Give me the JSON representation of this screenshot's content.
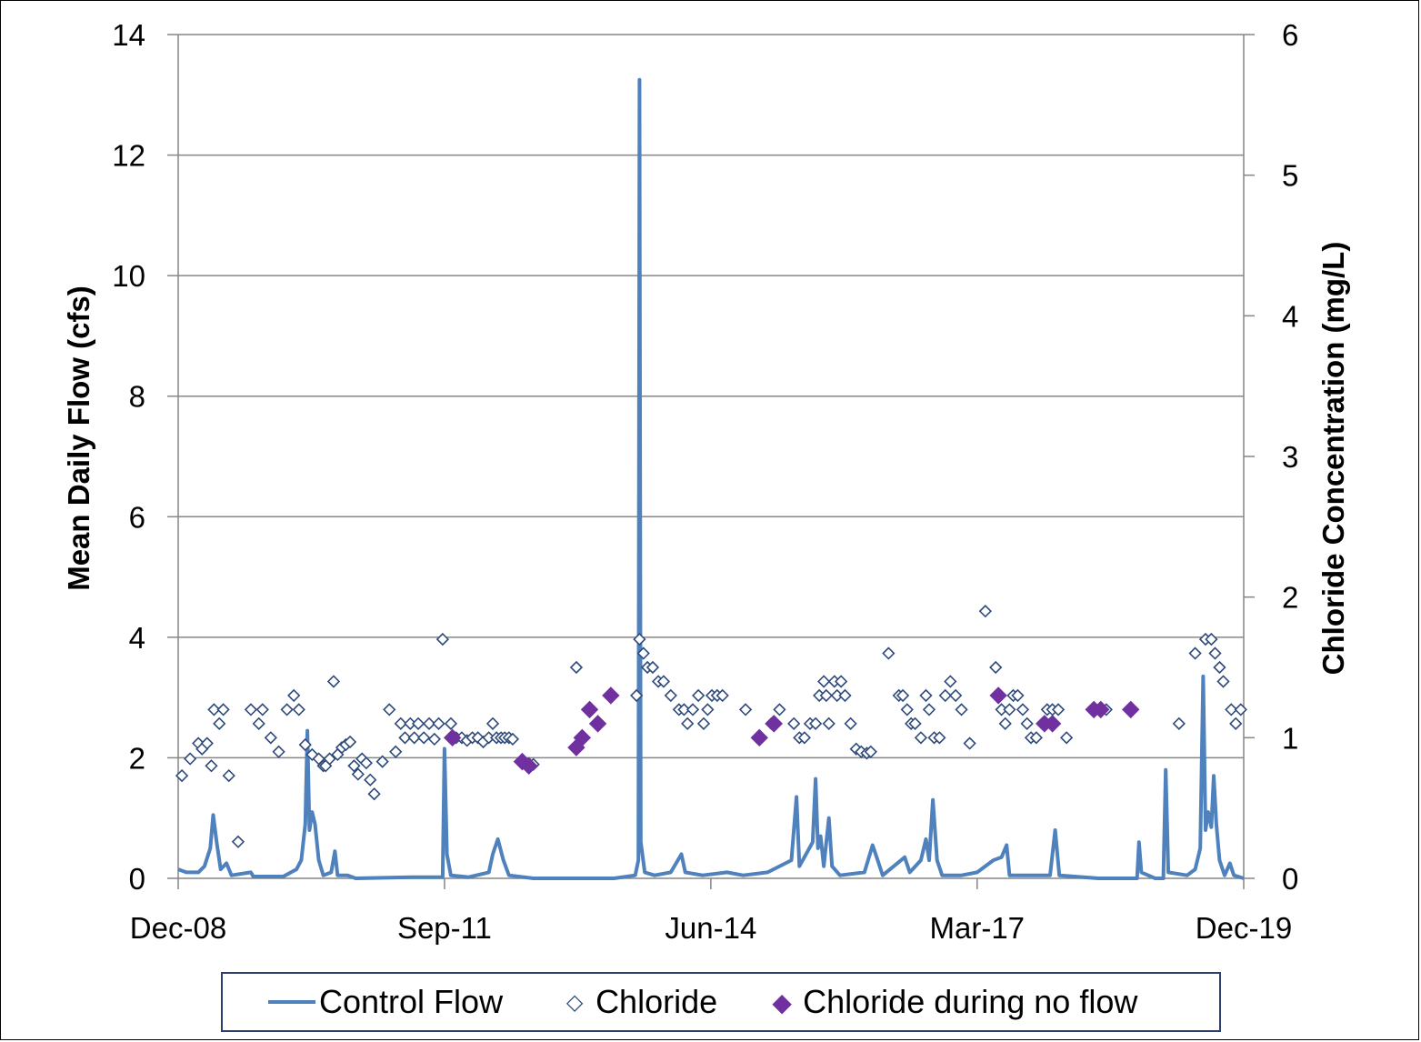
{
  "colors": {
    "flow": "#4f81bd",
    "chloride_edge": "#2e4a7a",
    "chloride_fill": "#ffffff",
    "noflow": "#7030a0",
    "grid": "#868686",
    "axis": "#868686"
  },
  "legend": {
    "flow_label": "Control Flow",
    "chloride_label": "Chloride",
    "noflow_label": "Chloride during no flow",
    "chloride_marker_icon": "◇",
    "noflow_marker_icon": "◆"
  },
  "chart_data": {
    "type": "line+scatter",
    "grid": "horizontal",
    "legend_position": "bottom",
    "x_axis": {
      "type": "date",
      "range": [
        "2008-12-01",
        "2019-12-01"
      ],
      "tick_labels": [
        "Dec-08",
        "Sep-11",
        "Jun-14",
        "Mar-17",
        "Dec-19"
      ],
      "tick_dates": [
        "2008-12-01",
        "2011-09-01",
        "2014-06-01",
        "2017-03-01",
        "2019-12-01"
      ]
    },
    "y_left": {
      "label": "Mean Daily  Flow (cfs)",
      "range": [
        0,
        14
      ],
      "ticks": [
        0,
        2,
        4,
        6,
        8,
        10,
        12,
        14
      ]
    },
    "y_right": {
      "label": "Chloride Concentration (mg/L)",
      "range": [
        0,
        6
      ],
      "ticks": [
        0,
        1,
        2,
        3,
        4,
        5,
        6
      ]
    },
    "series": [
      {
        "name": "Control Flow",
        "type": "line",
        "axis": "left",
        "points": [
          [
            "2008-12-01",
            0.15
          ],
          [
            "2009-01-01",
            0.1
          ],
          [
            "2009-02-15",
            0.1
          ],
          [
            "2009-03-10",
            0.2
          ],
          [
            "2009-04-01",
            0.5
          ],
          [
            "2009-04-12",
            1.05
          ],
          [
            "2009-04-25",
            0.6
          ],
          [
            "2009-05-10",
            0.15
          ],
          [
            "2009-06-01",
            0.25
          ],
          [
            "2009-06-20",
            0.05
          ],
          [
            "2009-09-01",
            0.1
          ],
          [
            "2009-09-10",
            0.03
          ],
          [
            "2010-01-01",
            0.03
          ],
          [
            "2010-02-20",
            0.15
          ],
          [
            "2010-03-10",
            0.3
          ],
          [
            "2010-03-25",
            0.9
          ],
          [
            "2010-04-02",
            2.45
          ],
          [
            "2010-04-10",
            0.8
          ],
          [
            "2010-04-20",
            1.1
          ],
          [
            "2010-05-01",
            0.9
          ],
          [
            "2010-05-15",
            0.3
          ],
          [
            "2010-06-01",
            0.05
          ],
          [
            "2010-07-01",
            0.1
          ],
          [
            "2010-07-15",
            0.45
          ],
          [
            "2010-07-25",
            0.05
          ],
          [
            "2010-09-01",
            0.05
          ],
          [
            "2010-10-01",
            0.0
          ],
          [
            "2011-05-01",
            0.02
          ],
          [
            "2011-08-25",
            0.02
          ],
          [
            "2011-09-01",
            2.15
          ],
          [
            "2011-09-10",
            0.4
          ],
          [
            "2011-09-25",
            0.05
          ],
          [
            "2011-12-01",
            0.02
          ],
          [
            "2012-02-15",
            0.1
          ],
          [
            "2012-03-01",
            0.4
          ],
          [
            "2012-03-20",
            0.65
          ],
          [
            "2012-04-10",
            0.3
          ],
          [
            "2012-05-01",
            0.05
          ],
          [
            "2012-08-01",
            0.0
          ],
          [
            "2013-06-01",
            0.0
          ],
          [
            "2013-08-20",
            0.05
          ],
          [
            "2013-09-01",
            0.3
          ],
          [
            "2013-09-05",
            13.25
          ],
          [
            "2013-09-10",
            0.6
          ],
          [
            "2013-09-25",
            0.1
          ],
          [
            "2013-11-01",
            0.05
          ],
          [
            "2014-01-01",
            0.1
          ],
          [
            "2014-02-10",
            0.4
          ],
          [
            "2014-02-25",
            0.1
          ],
          [
            "2014-05-01",
            0.05
          ],
          [
            "2014-08-01",
            0.1
          ],
          [
            "2014-10-01",
            0.05
          ],
          [
            "2015-01-01",
            0.1
          ],
          [
            "2015-04-01",
            0.3
          ],
          [
            "2015-04-20",
            1.35
          ],
          [
            "2015-05-01",
            0.2
          ],
          [
            "2015-06-20",
            0.6
          ],
          [
            "2015-07-01",
            1.65
          ],
          [
            "2015-07-10",
            0.5
          ],
          [
            "2015-07-20",
            0.7
          ],
          [
            "2015-08-01",
            0.2
          ],
          [
            "2015-08-20",
            1.0
          ],
          [
            "2015-09-01",
            0.2
          ],
          [
            "2015-10-01",
            0.05
          ],
          [
            "2016-01-01",
            0.1
          ],
          [
            "2016-02-01",
            0.55
          ],
          [
            "2016-02-20",
            0.3
          ],
          [
            "2016-03-10",
            0.05
          ],
          [
            "2016-06-01",
            0.35
          ],
          [
            "2016-06-20",
            0.1
          ],
          [
            "2016-08-01",
            0.3
          ],
          [
            "2016-08-20",
            0.65
          ],
          [
            "2016-09-01",
            0.3
          ],
          [
            "2016-09-15",
            1.3
          ],
          [
            "2016-10-01",
            0.3
          ],
          [
            "2016-10-20",
            0.05
          ],
          [
            "2017-01-01",
            0.05
          ],
          [
            "2017-03-01",
            0.1
          ],
          [
            "2017-05-01",
            0.3
          ],
          [
            "2017-06-01",
            0.35
          ],
          [
            "2017-06-20",
            0.55
          ],
          [
            "2017-07-01",
            0.05
          ],
          [
            "2017-12-01",
            0.05
          ],
          [
            "2017-12-20",
            0.8
          ],
          [
            "2018-01-05",
            0.05
          ],
          [
            "2018-06-01",
            0.0
          ],
          [
            "2018-10-25",
            0.0
          ],
          [
            "2018-11-01",
            0.6
          ],
          [
            "2018-11-10",
            0.1
          ],
          [
            "2019-01-01",
            0.0
          ],
          [
            "2019-02-01",
            0.0
          ],
          [
            "2019-02-10",
            1.8
          ],
          [
            "2019-02-20",
            0.1
          ],
          [
            "2019-05-01",
            0.05
          ],
          [
            "2019-06-01",
            0.15
          ],
          [
            "2019-06-20",
            0.5
          ],
          [
            "2019-07-01",
            3.35
          ],
          [
            "2019-07-10",
            0.8
          ],
          [
            "2019-07-20",
            1.1
          ],
          [
            "2019-08-01",
            0.85
          ],
          [
            "2019-08-10",
            1.7
          ],
          [
            "2019-08-20",
            0.9
          ],
          [
            "2019-09-01",
            0.3
          ],
          [
            "2019-09-20",
            0.05
          ],
          [
            "2019-10-10",
            0.25
          ],
          [
            "2019-10-25",
            0.05
          ],
          [
            "2019-12-01",
            0.0
          ]
        ]
      },
      {
        "name": "Chloride",
        "type": "scatter",
        "axis": "right",
        "marker": "hollow-diamond",
        "points": [
          [
            "2008-12-15",
            0.73
          ],
          [
            "2009-01-15",
            0.85
          ],
          [
            "2009-02-15",
            0.96
          ],
          [
            "2009-03-01",
            0.92
          ],
          [
            "2009-03-20",
            0.96
          ],
          [
            "2009-04-05",
            0.8
          ],
          [
            "2009-04-15",
            1.2
          ],
          [
            "2009-05-05",
            1.1
          ],
          [
            "2009-05-20",
            1.2
          ],
          [
            "2009-06-10",
            0.73
          ],
          [
            "2009-07-15",
            0.26
          ],
          [
            "2009-09-01",
            1.2
          ],
          [
            "2009-10-01",
            1.1
          ],
          [
            "2009-10-15",
            1.2
          ],
          [
            "2009-11-15",
            1.0
          ],
          [
            "2009-12-15",
            0.9
          ],
          [
            "2010-01-15",
            1.2
          ],
          [
            "2010-02-10",
            1.3
          ],
          [
            "2010-03-01",
            1.2
          ],
          [
            "2010-03-25",
            0.95
          ],
          [
            "2010-04-20",
            0.88
          ],
          [
            "2010-05-15",
            0.85
          ],
          [
            "2010-06-01",
            0.8
          ],
          [
            "2010-06-10",
            0.8
          ],
          [
            "2010-06-25",
            0.85
          ],
          [
            "2010-07-10",
            1.4
          ],
          [
            "2010-07-25",
            0.88
          ],
          [
            "2010-08-10",
            0.93
          ],
          [
            "2010-08-25",
            0.95
          ],
          [
            "2010-09-10",
            0.97
          ],
          [
            "2010-09-25",
            0.8
          ],
          [
            "2010-10-10",
            0.74
          ],
          [
            "2010-10-25",
            0.85
          ],
          [
            "2010-11-10",
            0.82
          ],
          [
            "2010-11-25",
            0.7
          ],
          [
            "2010-12-10",
            0.6
          ],
          [
            "2011-01-10",
            0.83
          ],
          [
            "2011-02-05",
            1.2
          ],
          [
            "2011-03-01",
            0.9
          ],
          [
            "2011-03-20",
            1.1
          ],
          [
            "2011-04-05",
            1.0
          ],
          [
            "2011-04-25",
            1.1
          ],
          [
            "2011-05-10",
            1.0
          ],
          [
            "2011-05-25",
            1.1
          ],
          [
            "2011-06-15",
            1.0
          ],
          [
            "2011-07-05",
            1.1
          ],
          [
            "2011-07-25",
            0.99
          ],
          [
            "2011-08-10",
            1.1
          ],
          [
            "2011-08-25",
            1.7
          ],
          [
            "2011-09-25",
            1.1
          ],
          [
            "2011-10-15",
            1.0
          ],
          [
            "2011-11-05",
            1.0
          ],
          [
            "2011-11-25",
            0.98
          ],
          [
            "2011-12-15",
            1.0
          ],
          [
            "2012-01-05",
            1.0
          ],
          [
            "2012-01-25",
            0.97
          ],
          [
            "2012-02-15",
            1.0
          ],
          [
            "2012-03-01",
            1.1
          ],
          [
            "2012-03-15",
            1.0
          ],
          [
            "2012-04-01",
            1.0
          ],
          [
            "2012-04-15",
            1.0
          ],
          [
            "2012-05-01",
            1.0
          ],
          [
            "2012-05-15",
            0.99
          ],
          [
            "2012-08-01",
            0.81
          ],
          [
            "2013-01-10",
            1.5
          ],
          [
            "2013-08-25",
            1.3
          ],
          [
            "2013-09-05",
            1.7
          ],
          [
            "2013-09-20",
            1.6
          ],
          [
            "2013-10-05",
            1.5
          ],
          [
            "2013-10-25",
            1.5
          ],
          [
            "2013-11-15",
            1.4
          ],
          [
            "2013-12-05",
            1.4
          ],
          [
            "2014-01-01",
            1.3
          ],
          [
            "2014-02-01",
            1.2
          ],
          [
            "2014-02-20",
            1.2
          ],
          [
            "2014-03-05",
            1.1
          ],
          [
            "2014-03-25",
            1.2
          ],
          [
            "2014-04-15",
            1.3
          ],
          [
            "2014-05-05",
            1.1
          ],
          [
            "2014-05-20",
            1.2
          ],
          [
            "2014-06-05",
            1.3
          ],
          [
            "2014-06-25",
            1.3
          ],
          [
            "2014-07-15",
            1.3
          ],
          [
            "2014-10-10",
            1.2
          ],
          [
            "2015-01-15",
            1.1
          ],
          [
            "2015-02-15",
            1.2
          ],
          [
            "2015-04-10",
            1.1
          ],
          [
            "2015-05-01",
            1.0
          ],
          [
            "2015-05-20",
            1.0
          ],
          [
            "2015-06-10",
            1.1
          ],
          [
            "2015-07-01",
            1.1
          ],
          [
            "2015-07-15",
            1.3
          ],
          [
            "2015-08-01",
            1.4
          ],
          [
            "2015-08-10",
            1.3
          ],
          [
            "2015-08-20",
            1.1
          ],
          [
            "2015-09-10",
            1.4
          ],
          [
            "2015-09-20",
            1.3
          ],
          [
            "2015-10-05",
            1.4
          ],
          [
            "2015-10-20",
            1.3
          ],
          [
            "2015-11-10",
            1.1
          ],
          [
            "2015-12-01",
            0.92
          ],
          [
            "2015-12-20",
            0.9
          ],
          [
            "2016-01-10",
            0.89
          ],
          [
            "2016-01-25",
            0.9
          ],
          [
            "2016-04-01",
            1.6
          ],
          [
            "2016-05-10",
            1.3
          ],
          [
            "2016-05-25",
            1.3
          ],
          [
            "2016-06-10",
            1.2
          ],
          [
            "2016-06-25",
            1.1
          ],
          [
            "2016-07-10",
            1.1
          ],
          [
            "2016-08-01",
            1.0
          ],
          [
            "2016-08-20",
            1.3
          ],
          [
            "2016-09-01",
            1.2
          ],
          [
            "2016-09-20",
            1.0
          ],
          [
            "2016-10-10",
            1.0
          ],
          [
            "2016-11-01",
            1.3
          ],
          [
            "2016-11-20",
            1.4
          ],
          [
            "2016-12-10",
            1.3
          ],
          [
            "2017-01-01",
            1.2
          ],
          [
            "2017-02-01",
            0.96
          ],
          [
            "2017-04-01",
            1.9
          ],
          [
            "2017-05-10",
            1.5
          ],
          [
            "2017-06-01",
            1.2
          ],
          [
            "2017-06-15",
            1.1
          ],
          [
            "2017-07-01",
            1.2
          ],
          [
            "2017-07-15",
            1.3
          ],
          [
            "2017-08-01",
            1.3
          ],
          [
            "2017-08-20",
            1.2
          ],
          [
            "2017-09-05",
            1.1
          ],
          [
            "2017-09-20",
            1.0
          ],
          [
            "2017-10-10",
            1.0
          ],
          [
            "2017-11-01",
            1.1
          ],
          [
            "2017-11-20",
            1.2
          ],
          [
            "2017-12-10",
            1.2
          ],
          [
            "2018-01-01",
            1.2
          ],
          [
            "2018-02-01",
            1.0
          ],
          [
            "2018-07-01",
            1.2
          ],
          [
            "2019-04-01",
            1.1
          ],
          [
            "2019-06-01",
            1.6
          ],
          [
            "2019-07-10",
            1.7
          ],
          [
            "2019-08-01",
            1.7
          ],
          [
            "2019-08-15",
            1.6
          ],
          [
            "2019-09-01",
            1.5
          ],
          [
            "2019-09-15",
            1.4
          ],
          [
            "2019-10-15",
            1.2
          ],
          [
            "2019-11-01",
            1.1
          ],
          [
            "2019-11-20",
            1.2
          ]
        ]
      },
      {
        "name": "Chloride during no flow",
        "type": "scatter",
        "axis": "right",
        "marker": "filled-diamond",
        "points": [
          [
            "2011-10-01",
            1.0
          ],
          [
            "2012-06-20",
            0.83
          ],
          [
            "2012-07-15",
            0.8
          ],
          [
            "2013-01-10",
            0.93
          ],
          [
            "2013-02-01",
            1.0
          ],
          [
            "2013-03-01",
            1.2
          ],
          [
            "2013-04-01",
            1.1
          ],
          [
            "2013-05-20",
            1.3
          ],
          [
            "2014-12-01",
            1.0
          ],
          [
            "2015-01-25",
            1.1
          ],
          [
            "2017-05-20",
            1.3
          ],
          [
            "2017-11-10",
            1.1
          ],
          [
            "2017-12-10",
            1.1
          ],
          [
            "2018-05-15",
            1.2
          ],
          [
            "2018-06-10",
            1.2
          ],
          [
            "2018-10-01",
            1.2
          ]
        ]
      }
    ]
  }
}
